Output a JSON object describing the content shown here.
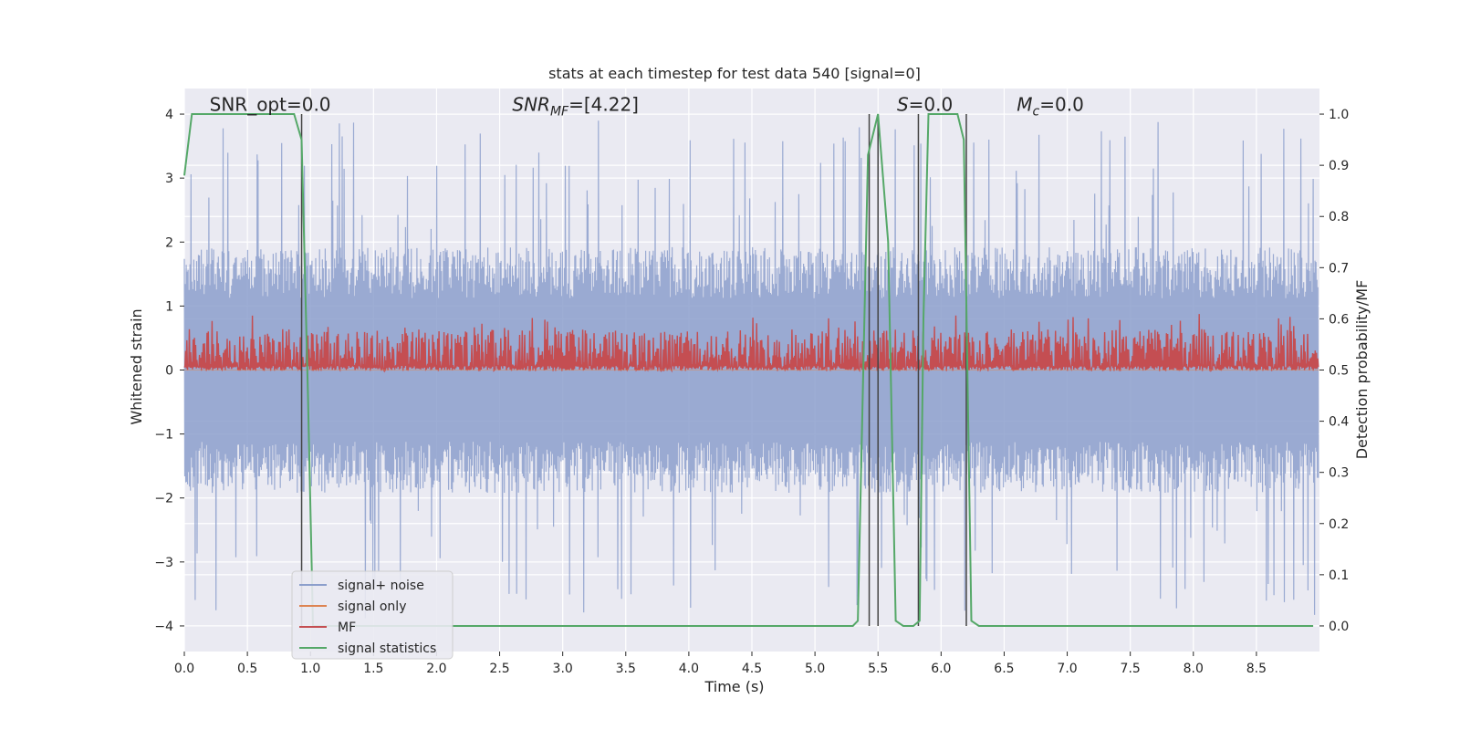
{
  "chart_data": {
    "type": "line",
    "title": "stats at each timestep for test data 540 [signal=0]",
    "xlabel": "Time (s)",
    "ylabel": "Whitened strain",
    "y2label": "Detection probability/MF",
    "xlim": [
      0.0,
      9.0
    ],
    "ylim": [
      -4.4,
      4.4
    ],
    "y2lim": [
      -0.05,
      1.05
    ],
    "xticks": [
      "0.0",
      "0.5",
      "1.0",
      "1.5",
      "2.0",
      "2.5",
      "3.0",
      "3.5",
      "4.0",
      "4.5",
      "5.0",
      "5.5",
      "6.0",
      "6.5",
      "7.0",
      "7.5",
      "8.0",
      "8.5"
    ],
    "yticks": [
      "−4",
      "−3",
      "−2",
      "−1",
      "0",
      "1",
      "2",
      "3",
      "4"
    ],
    "y2ticks": [
      "0.0",
      "0.1",
      "0.2",
      "0.3",
      "0.4",
      "0.5",
      "0.6",
      "0.7",
      "0.8",
      "0.9",
      "1.0"
    ],
    "grid": true,
    "legend_position": "lower-left",
    "series": [
      {
        "name": "signal+ noise",
        "color": "#8c9fcc",
        "kind": "noise",
        "amplitude_typical": 1.6,
        "amplitude_peak": 3.9
      },
      {
        "name": "signal only",
        "color": "#dd8452",
        "kind": "flat",
        "values_y": 0.0
      },
      {
        "name": "MF",
        "color": "#c44e52",
        "kind": "noise_band",
        "axis": "right",
        "range": [
          0.5,
          0.58
        ]
      },
      {
        "name": "signal statistics",
        "color": "#55a868",
        "axis": "right",
        "x": [
          0.0,
          0.06,
          0.12,
          0.2,
          0.3,
          0.5,
          0.7,
          0.87,
          0.93,
          0.98,
          1.02,
          1.06,
          5.3,
          5.34,
          5.42,
          5.5,
          5.58,
          5.64,
          5.7,
          5.78,
          5.83,
          5.86,
          5.9,
          6.0,
          6.13,
          6.18,
          6.24,
          6.3,
          6.5,
          8.8,
          8.95
        ],
        "y": [
          0.88,
          1.0,
          1.0,
          1.0,
          1.0,
          1.0,
          1.0,
          1.0,
          0.95,
          0.45,
          0.0,
          0.0,
          0.0,
          0.01,
          0.92,
          1.0,
          0.75,
          0.01,
          0.0,
          0.0,
          0.01,
          0.6,
          1.0,
          1.0,
          1.0,
          0.95,
          0.01,
          0.0,
          0.0,
          0.0,
          0.0
        ]
      }
    ],
    "vlines": [
      0.93,
      5.43,
      5.5,
      5.82,
      6.2
    ],
    "annotations": [
      {
        "text": "SNR_opt=0.0",
        "x": 0.2,
        "y": 4.05
      },
      {
        "text": "SNR_MF=[4.22]",
        "x": 2.6,
        "y": 4.05
      },
      {
        "text": "S=0.0",
        "x": 5.65,
        "y": 4.05
      },
      {
        "text": "M_c=0.0",
        "x": 6.6,
        "y": 4.05
      }
    ]
  }
}
